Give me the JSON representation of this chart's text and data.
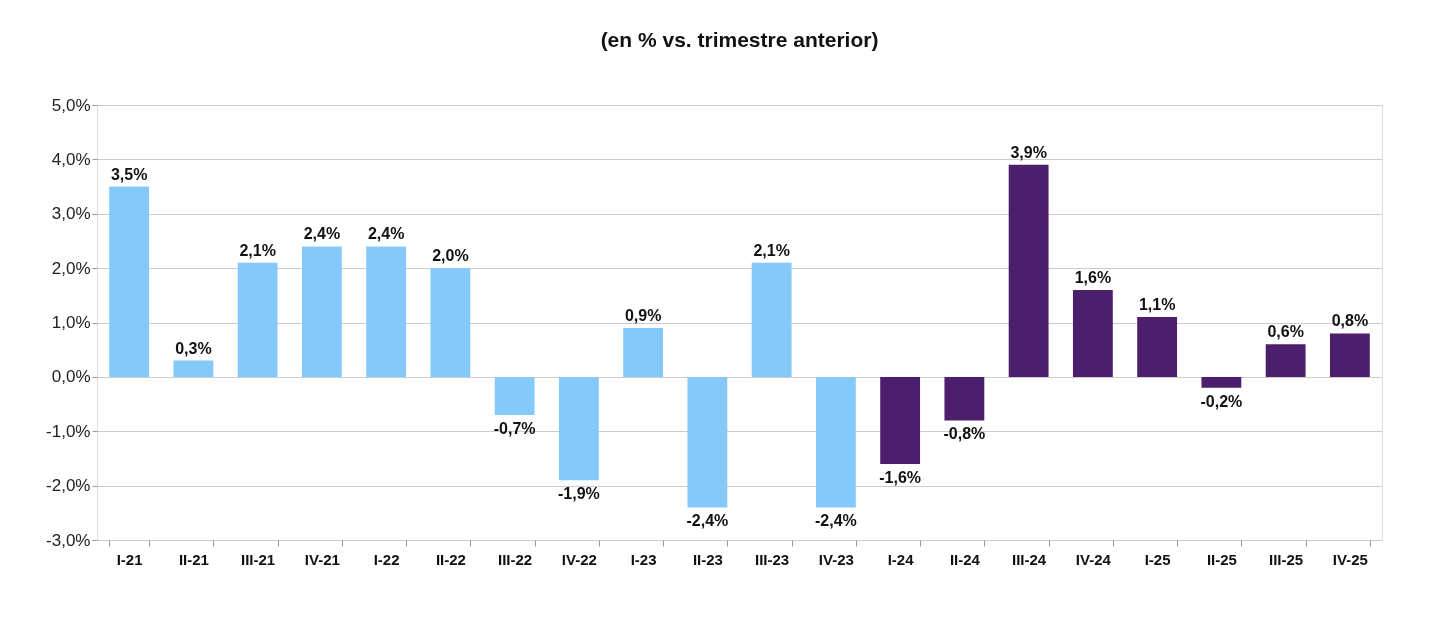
{
  "chart_data": {
    "type": "bar",
    "title": "(en % vs. trimestre anterior)",
    "categories": [
      "I-21",
      "II-21",
      "III-21",
      "IV-21",
      "I-22",
      "II-22",
      "III-22",
      "IV-22",
      "I-23",
      "II-23",
      "III-23",
      "IV-23",
      "I-24",
      "II-24",
      "III-24",
      "IV-24",
      "I-25",
      "II-25",
      "III-25",
      "IV-25"
    ],
    "values": [
      3.5,
      0.3,
      2.1,
      2.4,
      2.4,
      2.0,
      -0.7,
      -1.9,
      0.9,
      -2.4,
      2.1,
      -2.4,
      -1.6,
      -0.8,
      3.9,
      1.6,
      1.1,
      -0.2,
      0.6,
      0.8
    ],
    "value_labels": [
      "3,5%",
      "0,3%",
      "2,1%",
      "2,4%",
      "2,4%",
      "2,0%",
      "-0,7%",
      "-1,9%",
      "0,9%",
      "-2,4%",
      "2,1%",
      "-2,4%",
      "-1,6%",
      "-0,8%",
      "3,9%",
      "1,6%",
      "1,1%",
      "-0,2%",
      "0,6%",
      "0,8%"
    ],
    "colors": [
      "#85c9fa",
      "#85c9fa",
      "#85c9fa",
      "#85c9fa",
      "#85c9fa",
      "#85c9fa",
      "#85c9fa",
      "#85c9fa",
      "#85c9fa",
      "#85c9fa",
      "#85c9fa",
      "#85c9fa",
      "#4b1f6c",
      "#4b1f6c",
      "#4b1f6c",
      "#4b1f6c",
      "#4b1f6c",
      "#4b1f6c",
      "#4b1f6c",
      "#4b1f6c"
    ],
    "ylim": [
      -3,
      5
    ],
    "yticks": [
      {
        "value": -3,
        "label": "-3,0%"
      },
      {
        "value": -2,
        "label": "-2,0%"
      },
      {
        "value": -1,
        "label": "-1,0%"
      },
      {
        "value": 0,
        "label": "0,0%"
      },
      {
        "value": 1,
        "label": "1,0%"
      },
      {
        "value": 2,
        "label": "2,0%"
      },
      {
        "value": 3,
        "label": "3,0%"
      },
      {
        "value": 4,
        "label": "4,0%"
      },
      {
        "value": 5,
        "label": "5,0%"
      }
    ],
    "grid": "y"
  }
}
